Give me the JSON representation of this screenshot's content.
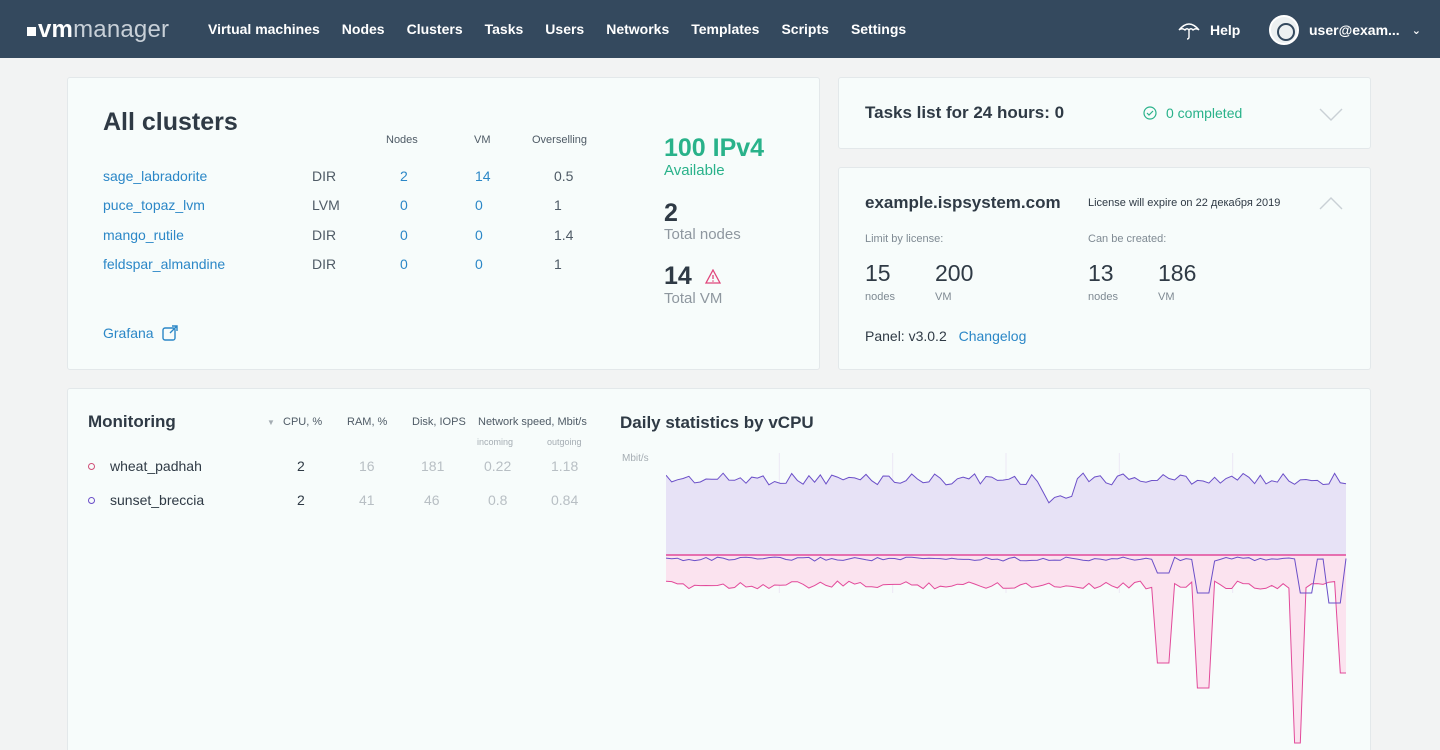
{
  "header": {
    "logo_bold": "vm",
    "logo_light": "manager",
    "nav": [
      "Virtual machines",
      "Nodes",
      "Clusters",
      "Tasks",
      "Users",
      "Networks",
      "Templates",
      "Scripts",
      "Settings"
    ],
    "help_label": "Help",
    "user_label": "user@exam...",
    "colors": {
      "bar": "#34495e"
    }
  },
  "clusters": {
    "title": "All clusters",
    "columns": {
      "nodes": "Nodes",
      "vm": "VM",
      "overselling": "Overselling"
    },
    "rows": [
      {
        "name": "sage_labradorite",
        "type": "DIR",
        "nodes": "2",
        "vm": "14",
        "overselling": "0.5"
      },
      {
        "name": "puce_topaz_lvm",
        "type": "LVM",
        "nodes": "0",
        "vm": "0",
        "overselling": "1"
      },
      {
        "name": "mango_rutile",
        "type": "DIR",
        "nodes": "0",
        "vm": "0",
        "overselling": "1.4"
      },
      {
        "name": "feldspar_almandine",
        "type": "DIR",
        "nodes": "0",
        "vm": "0",
        "overselling": "1"
      }
    ],
    "grafana": "Grafana",
    "ipv4_value": "100 IPv4",
    "ipv4_label": "Available",
    "total_nodes_value": "2",
    "total_nodes_label": "Total nodes",
    "total_vm_value": "14",
    "total_vm_label": "Total VM"
  },
  "tasks": {
    "title": "Tasks list for 24 hours: 0",
    "completed": "0 completed"
  },
  "license": {
    "domain": "example.ispsystem.com",
    "expire": "License will expire on 22 декабря 2019",
    "limit_label": "Limit by license:",
    "create_label": "Can be created:",
    "limit_nodes": "15",
    "limit_vm": "200",
    "create_nodes": "13",
    "create_vm": "186",
    "unit_nodes": "nodes",
    "unit_vm": "VM",
    "panel": "Panel: v3.0.2",
    "changelog": "Changelog"
  },
  "monitoring": {
    "title": "Monitoring",
    "columns": {
      "cpu": "CPU, %",
      "ram": "RAM, %",
      "disk": "Disk, IOPS",
      "net": "Network speed, Mbit/s",
      "incoming": "incoming",
      "outgoing": "outgoing"
    },
    "rows": [
      {
        "name": "wheat_padhah",
        "cpu": "2",
        "ram": "16",
        "disk": "181",
        "in": "0.22",
        "out": "1.18"
      },
      {
        "name": "sunset_breccia",
        "cpu": "2",
        "ram": "41",
        "disk": "46",
        "in": "0.8",
        "out": "0.84"
      }
    ]
  },
  "daily": {
    "title": "Daily statistics by vCPU",
    "unit": "Mbit/s"
  },
  "chart_data": {
    "type": "area",
    "title": "Daily statistics by vCPU",
    "ylabel": "Mbit/s",
    "series": [
      {
        "color": "#6b4fc8"
      },
      {
        "color": "#e24a9a"
      }
    ]
  }
}
